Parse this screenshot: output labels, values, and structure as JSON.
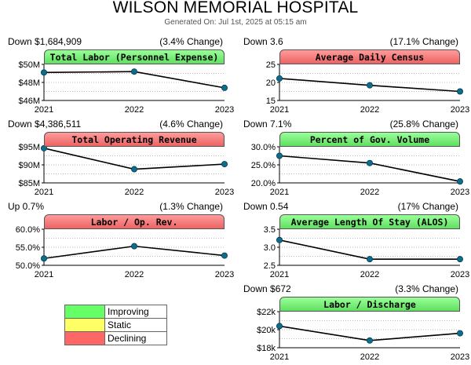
{
  "report": {
    "title": "WILSON MEMORIAL HOSPITAL",
    "generated": "Generated On: Jul 1st, 2025 at 05:15 am"
  },
  "colors": {
    "improving": "#66ff66",
    "static": "#ffff66",
    "declining": "#ff6666",
    "point": "#0b6f8c"
  },
  "legend": [
    {
      "label": "Improving",
      "color": "#66ff66"
    },
    {
      "label": "Static",
      "color": "#ffff66"
    },
    {
      "label": "Declining",
      "color": "#ff6666"
    }
  ],
  "chart_data": [
    {
      "type": "line",
      "title": "Total Labor (Personnel Expense)",
      "status": "improving",
      "change": "Down $1,684,909",
      "pct": "(3.4% Change)",
      "x": [
        "2021",
        "2022",
        "2023"
      ],
      "values": [
        49.1,
        49.2,
        47.4
      ],
      "ylim": [
        46,
        50
      ],
      "ticks": [
        50,
        48,
        46
      ],
      "tick_labels": [
        "$50M",
        "$48M",
        "$46M"
      ]
    },
    {
      "type": "line",
      "title": "Average Daily Census",
      "status": "declining",
      "change": "Down 3.6",
      "pct": "(17.1% Change)",
      "x": [
        "2021",
        "2022",
        "2023"
      ],
      "values": [
        21.1,
        19.2,
        17.5
      ],
      "ylim": [
        15,
        25
      ],
      "ticks": [
        25,
        20,
        15
      ],
      "tick_labels": [
        "25",
        "20",
        "15"
      ]
    },
    {
      "type": "line",
      "title": "Total Operating Revenue",
      "status": "declining",
      "change": "Down $4,386,511",
      "pct": "(4.6% Change)",
      "x": [
        "2021",
        "2022",
        "2023"
      ],
      "values": [
        94.6,
        88.8,
        90.2
      ],
      "ylim": [
        85,
        95
      ],
      "ticks": [
        95,
        90,
        85
      ],
      "tick_labels": [
        "$95M",
        "$90M",
        "$85M"
      ]
    },
    {
      "type": "line",
      "title": "Percent of Gov. Volume",
      "status": "improving",
      "change": "Down 7.1%",
      "pct": "(25.8% Change)",
      "x": [
        "2021",
        "2022",
        "2023"
      ],
      "values": [
        27.5,
        25.5,
        20.4
      ],
      "ylim": [
        20,
        30
      ],
      "ticks": [
        30,
        25,
        20
      ],
      "tick_labels": [
        "30.0%",
        "25.0%",
        "20.0%"
      ]
    },
    {
      "type": "line",
      "title": "Labor / Op. Rev.",
      "status": "declining",
      "change": "Up 0.7%",
      "pct": "(1.3% Change)",
      "x": [
        "2021",
        "2022",
        "2023"
      ],
      "values": [
        51.9,
        55.3,
        52.7
      ],
      "ylim": [
        50,
        60
      ],
      "ticks": [
        60,
        55,
        50
      ],
      "tick_labels": [
        "60.0%",
        "55.0%",
        "50.0%"
      ]
    },
    {
      "type": "line",
      "title": "Average Length Of Stay (ALOS)",
      "status": "improving",
      "change": "Down 0.54",
      "pct": "(17% Change)",
      "x": [
        "2021",
        "2022",
        "2023"
      ],
      "values": [
        3.2,
        2.67,
        2.67
      ],
      "ylim": [
        2.5,
        3.5
      ],
      "ticks": [
        3.5,
        3.0,
        2.5
      ],
      "tick_labels": [
        "3.5",
        "3.0",
        "2.5"
      ]
    },
    {
      "type": "line",
      "title": "Labor / Discharge",
      "status": "improving",
      "change": "Down $672",
      "pct": "(3.3% Change)",
      "x": [
        "2021",
        "2022",
        "2023"
      ],
      "values": [
        20.4,
        18.8,
        19.6
      ],
      "ylim": [
        18,
        22
      ],
      "ticks": [
        22,
        20,
        18
      ],
      "tick_labels": [
        "$22k",
        "$20k",
        "$18k"
      ]
    }
  ]
}
